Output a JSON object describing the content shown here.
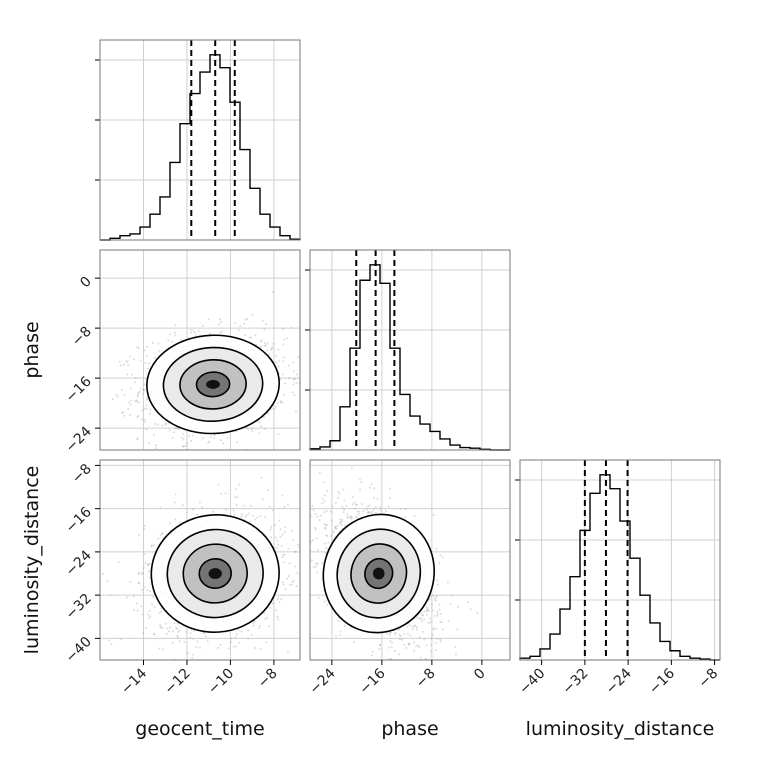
{
  "chart_data": {
    "type": "corner",
    "parameters": [
      "geocent_time",
      "phase",
      "luminosity_distance"
    ],
    "ranges": {
      "geocent_time": [
        -16,
        -6.8
      ],
      "phase": [
        -27.5,
        4.5
      ],
      "luminosity_distance": [
        -44,
        -7
      ]
    },
    "ticks": {
      "geocent_time": [
        -14,
        -12,
        -10,
        -8
      ],
      "phase": [
        -24,
        -16,
        -8,
        0
      ],
      "luminosity_distance": [
        -40,
        -32,
        -24,
        -16,
        -8
      ]
    },
    "tick_labels": {
      "geocent_time": [
        "−14",
        "−12",
        "−10",
        "−8"
      ],
      "phase": [
        "−24",
        "−16",
        "−8",
        "0"
      ],
      "luminosity_distance": [
        "−40",
        "−32",
        "−24",
        "−16",
        "−8"
      ]
    },
    "quantiles": {
      "geocent_time": [
        -11.8,
        -10.7,
        -9.8
      ],
      "phase": [
        -20.1,
        -17.0,
        -14.0
      ],
      "luminosity_distance": [
        -32.0,
        -28.1,
        -24.1
      ]
    },
    "histograms": {
      "geocent_time": {
        "edges": [
          -16,
          -15.54,
          -15.08,
          -14.62,
          -14.16,
          -13.7,
          -13.24,
          -12.78,
          -12.32,
          -11.86,
          -11.4,
          -10.94,
          -10.48,
          -10.02,
          -9.56,
          -9.1,
          -8.64,
          -8.18,
          -7.72,
          -7.26,
          -6.8
        ],
        "counts": [
          0,
          2,
          5,
          7,
          15,
          30,
          50,
          90,
          135,
          170,
          195,
          215,
          200,
          160,
          105,
          60,
          30,
          15,
          5,
          1
        ]
      },
      "phase": {
        "edges": [
          -27.5,
          -25.9,
          -24.3,
          -22.7,
          -21.1,
          -19.5,
          -17.9,
          -16.3,
          -14.7,
          -13.1,
          -11.5,
          -9.9,
          -8.3,
          -6.7,
          -5.1,
          -3.5,
          -1.9,
          -0.3,
          1.3,
          2.9,
          4.5
        ],
        "counts": [
          2,
          5,
          15,
          70,
          165,
          275,
          300,
          270,
          165,
          90,
          55,
          42,
          30,
          18,
          8,
          4,
          3,
          1,
          0,
          0
        ]
      },
      "luminosity_distance": {
        "edges": [
          -44,
          -42.15,
          -40.3,
          -38.45,
          -36.6,
          -34.75,
          -32.9,
          -31.05,
          -29.2,
          -27.35,
          -25.5,
          -23.65,
          -21.8,
          -19.95,
          -18.1,
          -16.25,
          -14.4,
          -12.55,
          -10.7,
          -8.85,
          -7
        ],
        "counts": [
          2,
          4,
          12,
          28,
          55,
          90,
          140,
          180,
          200,
          185,
          150,
          110,
          70,
          40,
          20,
          10,
          4,
          2,
          1,
          0
        ]
      }
    },
    "pairs": [
      {
        "x": "geocent_time",
        "y": "phase",
        "center": [
          -10.8,
          -17.0
        ],
        "sigma": [
          1.45,
          3.6
        ],
        "rho": 0.1
      },
      {
        "x": "geocent_time",
        "y": "luminosity_distance",
        "center": [
          -10.7,
          -28.0
        ],
        "sigma": [
          1.4,
          5.0
        ],
        "rho": 0.15
      },
      {
        "x": "phase",
        "y": "luminosity_distance",
        "center": [
          -16.5,
          -28.0
        ],
        "sigma": [
          4.2,
          5.5
        ],
        "rho": -0.45
      }
    ],
    "contour_levels": [
      0.5,
      1.0,
      1.5,
      2.0
    ],
    "grid": true
  }
}
